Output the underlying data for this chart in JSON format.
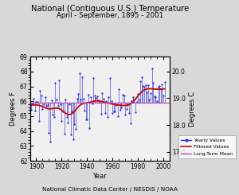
{
  "title": "National (Contiguous U.S.) Temperature",
  "subtitle": "April - September, 1895 - 2001",
  "xlabel": "Year",
  "ylabel_left": "Degrees F",
  "ylabel_right": "Degrees C",
  "footer": "National Climatic Data Center / NESDIS / NOAA",
  "xlim": [
    1895,
    2005
  ],
  "ylim_f": [
    62.0,
    69.0
  ],
  "yticks_f": [
    62.0,
    63.0,
    64.0,
    65.0,
    66.0,
    67.0,
    68.0,
    69.0
  ],
  "yticks_c": [
    17.0,
    18.0,
    19.0,
    20.0
  ],
  "xticks": [
    1900,
    1920,
    1940,
    1960,
    1980,
    2000
  ],
  "long_term_mean_f": 65.9,
  "bar_color": "#3333cc",
  "filtered_color": "#cc0000",
  "mean_color": "#bb44bb",
  "legend_labels": [
    "Yearly Values",
    "Filtered Values",
    "Long-Term Mean"
  ],
  "bg_color": "#d8d8d8",
  "plot_bg": "#f0f0f0"
}
